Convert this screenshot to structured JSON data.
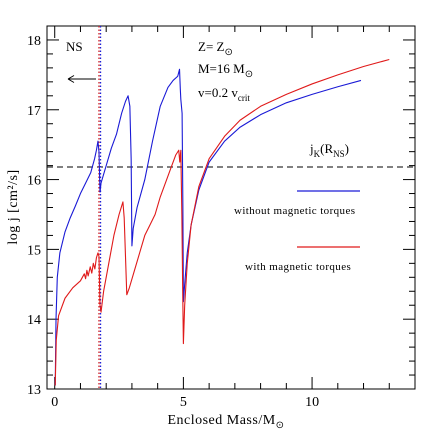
{
  "chart_data": {
    "type": "line",
    "xlabel": "Enclosed Mass/M",
    "xlabel_subscript_symbol": "⊙",
    "ylabel": "log j [cm²/s]",
    "xlim": [
      -0.3,
      14.0
    ],
    "ylim": [
      13,
      18.2
    ],
    "x_ticks": [
      0,
      5,
      10
    ],
    "y_ticks": [
      13,
      14,
      15,
      16,
      17,
      18
    ],
    "grid": false,
    "annotations": {
      "ns_label": "NS",
      "z_label": "Z=  Z",
      "z_symbol": "⊙",
      "m_label": "M=16  M",
      "m_symbol": "⊙",
      "v_label": "v=0.2  v",
      "v_sub": "crit",
      "jk_label": "j",
      "jk_sub_k": "K",
      "jk_paren_open": "(R",
      "jk_sub_ns": "NS",
      "jk_paren_close": ")",
      "arrow_icon": "left-arrow-icon"
    },
    "hline": {
      "y": 16.18,
      "style": "dashed",
      "color": "#000000"
    },
    "vlines": [
      {
        "x": 1.72,
        "style": "dotted",
        "color": "#d62020"
      },
      {
        "x": 1.78,
        "style": "dotted",
        "color": "#2020d6"
      }
    ],
    "legend": {
      "position": "right",
      "entries": [
        {
          "label": "without magnetic torques",
          "color": "#1a1ad6"
        },
        {
          "label": "with magnetic torques",
          "color": "#e01a1a"
        }
      ]
    },
    "series": [
      {
        "name": "without magnetic torques",
        "color": "#1a1ad6",
        "points": [
          [
            0.02,
            13.05
          ],
          [
            0.05,
            14.0
          ],
          [
            0.1,
            14.6
          ],
          [
            0.2,
            14.95
          ],
          [
            0.4,
            15.25
          ],
          [
            0.6,
            15.45
          ],
          [
            0.8,
            15.62
          ],
          [
            1.0,
            15.8
          ],
          [
            1.2,
            15.95
          ],
          [
            1.4,
            16.1
          ],
          [
            1.55,
            16.3
          ],
          [
            1.62,
            16.42
          ],
          [
            1.68,
            16.55
          ],
          [
            1.72,
            16.4
          ],
          [
            1.76,
            15.82
          ],
          [
            1.8,
            15.95
          ],
          [
            2.0,
            16.2
          ],
          [
            2.2,
            16.45
          ],
          [
            2.4,
            16.65
          ],
          [
            2.6,
            16.95
          ],
          [
            2.75,
            17.12
          ],
          [
            2.85,
            17.2
          ],
          [
            2.92,
            17.05
          ],
          [
            2.97,
            16.3
          ],
          [
            3.0,
            15.05
          ],
          [
            3.05,
            15.3
          ],
          [
            3.2,
            15.6
          ],
          [
            3.5,
            16.0
          ],
          [
            3.8,
            16.55
          ],
          [
            4.1,
            17.05
          ],
          [
            4.4,
            17.32
          ],
          [
            4.6,
            17.42
          ],
          [
            4.78,
            17.48
          ],
          [
            4.85,
            17.58
          ],
          [
            4.88,
            17.3
          ],
          [
            4.9,
            17.15
          ],
          [
            4.95,
            16.95
          ],
          [
            4.98,
            15.6
          ],
          [
            5.0,
            14.25
          ],
          [
            5.05,
            14.5
          ],
          [
            5.15,
            14.95
          ],
          [
            5.3,
            15.35
          ],
          [
            5.6,
            15.85
          ],
          [
            6.0,
            16.25
          ],
          [
            6.6,
            16.55
          ],
          [
            7.2,
            16.75
          ],
          [
            8.0,
            16.93
          ],
          [
            9.0,
            17.1
          ],
          [
            10.0,
            17.22
          ],
          [
            11.0,
            17.33
          ],
          [
            11.9,
            17.42
          ]
        ]
      },
      {
        "name": "with magnetic torques",
        "color": "#e01a1a",
        "points": [
          [
            0.02,
            13.05
          ],
          [
            0.06,
            13.7
          ],
          [
            0.15,
            14.05
          ],
          [
            0.4,
            14.3
          ],
          [
            0.7,
            14.45
          ],
          [
            1.0,
            14.55
          ],
          [
            1.15,
            14.65
          ],
          [
            1.2,
            14.58
          ],
          [
            1.25,
            14.7
          ],
          [
            1.3,
            14.62
          ],
          [
            1.38,
            14.75
          ],
          [
            1.44,
            14.66
          ],
          [
            1.5,
            14.8
          ],
          [
            1.56,
            14.72
          ],
          [
            1.62,
            14.88
          ],
          [
            1.68,
            14.95
          ],
          [
            1.72,
            14.9
          ],
          [
            1.76,
            14.2
          ],
          [
            1.8,
            14.1
          ],
          [
            1.9,
            14.4
          ],
          [
            2.1,
            14.8
          ],
          [
            2.3,
            15.2
          ],
          [
            2.5,
            15.5
          ],
          [
            2.65,
            15.68
          ],
          [
            2.7,
            15.45
          ],
          [
            2.75,
            14.9
          ],
          [
            2.8,
            14.35
          ],
          [
            2.9,
            14.45
          ],
          [
            3.1,
            14.7
          ],
          [
            3.3,
            14.95
          ],
          [
            3.5,
            15.2
          ],
          [
            3.7,
            15.35
          ],
          [
            3.9,
            15.5
          ],
          [
            4.1,
            15.75
          ],
          [
            4.3,
            15.95
          ],
          [
            4.5,
            16.15
          ],
          [
            4.7,
            16.35
          ],
          [
            4.82,
            16.42
          ],
          [
            4.86,
            16.25
          ],
          [
            4.9,
            16.42
          ],
          [
            4.94,
            15.5
          ],
          [
            4.97,
            14.5
          ],
          [
            5.0,
            13.65
          ],
          [
            5.05,
            14.2
          ],
          [
            5.15,
            14.8
          ],
          [
            5.3,
            15.35
          ],
          [
            5.6,
            15.9
          ],
          [
            6.0,
            16.3
          ],
          [
            6.6,
            16.62
          ],
          [
            7.2,
            16.85
          ],
          [
            8.0,
            17.05
          ],
          [
            9.0,
            17.22
          ],
          [
            10.0,
            17.37
          ],
          [
            11.0,
            17.5
          ],
          [
            12.0,
            17.62
          ],
          [
            13.0,
            17.72
          ]
        ]
      }
    ]
  }
}
